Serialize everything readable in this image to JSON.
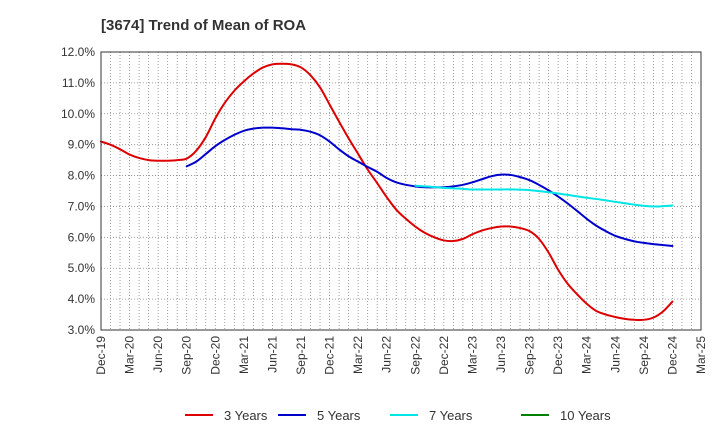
{
  "chart_data": {
    "type": "line",
    "title": "[3674]  Trend of Mean of ROA",
    "xlabel": "",
    "ylabel": "",
    "ylim": [
      3.0,
      12.0
    ],
    "y_ticks": [
      "12.0%",
      "11.0%",
      "10.0%",
      "9.0%",
      "8.0%",
      "7.0%",
      "6.0%",
      "5.0%",
      "4.0%",
      "3.0%"
    ],
    "categories": [
      "Dec-19",
      "Mar-20",
      "Jun-20",
      "Sep-20",
      "Dec-20",
      "Mar-21",
      "Jun-21",
      "Sep-21",
      "Dec-21",
      "Mar-22",
      "Jun-22",
      "Sep-22",
      "Dec-22",
      "Mar-23",
      "Jun-23",
      "Sep-23",
      "Dec-23",
      "Mar-24",
      "Jun-24",
      "Sep-24",
      "Dec-24",
      "Mar-25"
    ],
    "grid": true,
    "legend_position": "bottom",
    "series": [
      {
        "name": "3 Years",
        "color": "#dd0000",
        "x": [
          0,
          0.33,
          0.67,
          1,
          1.33,
          1.67,
          2,
          2.33,
          2.67,
          3,
          3.33,
          3.67,
          4,
          4.33,
          4.67,
          5,
          5.33,
          5.67,
          6,
          6.33,
          6.67,
          7,
          7.33,
          7.67,
          8,
          8.33,
          8.67,
          9,
          9.33,
          9.67,
          10,
          10.33,
          10.67,
          11,
          11.33,
          11.67,
          12,
          12.33,
          12.67,
          13,
          13.33,
          13.67,
          14,
          14.33,
          14.67,
          15,
          15.33,
          15.67,
          16,
          16.33,
          16.67,
          17,
          17.33,
          17.67,
          18,
          18.33,
          18.67,
          19,
          19.33,
          19.67,
          20
        ],
        "values": [
          9.1,
          9.0,
          8.85,
          8.68,
          8.57,
          8.5,
          8.48,
          8.48,
          8.5,
          8.55,
          8.8,
          9.25,
          9.85,
          10.35,
          10.75,
          11.05,
          11.3,
          11.5,
          11.6,
          11.62,
          11.6,
          11.5,
          11.25,
          10.85,
          10.3,
          9.75,
          9.2,
          8.7,
          8.2,
          7.75,
          7.3,
          6.9,
          6.6,
          6.35,
          6.15,
          6.0,
          5.9,
          5.88,
          5.95,
          6.1,
          6.22,
          6.3,
          6.35,
          6.35,
          6.3,
          6.2,
          5.95,
          5.5,
          4.95,
          4.5,
          4.15,
          3.85,
          3.62,
          3.5,
          3.42,
          3.36,
          3.33,
          3.33,
          3.4,
          3.6,
          3.92
        ]
      },
      {
        "name": "5 Years",
        "color": "#0000cc",
        "x": [
          3,
          3.33,
          3.67,
          4,
          4.33,
          4.67,
          5,
          5.33,
          5.67,
          6,
          6.33,
          6.67,
          7,
          7.33,
          7.67,
          8,
          8.33,
          8.67,
          9,
          9.33,
          9.67,
          10,
          10.33,
          10.67,
          11,
          11.33,
          11.67,
          12,
          12.33,
          12.67,
          13,
          13.33,
          13.67,
          14,
          14.33,
          14.67,
          15,
          15.33,
          15.67,
          16,
          16.33,
          16.67,
          17,
          17.33,
          17.67,
          18,
          18.33,
          18.67,
          19,
          19.33,
          19.67,
          20
        ],
        "values": [
          8.3,
          8.45,
          8.7,
          8.95,
          9.15,
          9.32,
          9.45,
          9.52,
          9.55,
          9.55,
          9.53,
          9.5,
          9.48,
          9.42,
          9.3,
          9.1,
          8.85,
          8.62,
          8.45,
          8.28,
          8.12,
          7.92,
          7.78,
          7.7,
          7.65,
          7.62,
          7.62,
          7.62,
          7.65,
          7.7,
          7.78,
          7.88,
          7.98,
          8.03,
          8.02,
          7.95,
          7.85,
          7.7,
          7.52,
          7.32,
          7.1,
          6.85,
          6.6,
          6.38,
          6.2,
          6.05,
          5.95,
          5.87,
          5.82,
          5.78,
          5.75,
          5.72
        ]
      },
      {
        "name": "7 Years",
        "color": "#00e5e5",
        "x": [
          11,
          11.5,
          12,
          12.5,
          13,
          13.5,
          14,
          14.5,
          15,
          15.5,
          16,
          16.5,
          17,
          17.5,
          18,
          18.5,
          19,
          19.5,
          20
        ],
        "values": [
          7.67,
          7.64,
          7.6,
          7.58,
          7.55,
          7.55,
          7.55,
          7.55,
          7.53,
          7.48,
          7.42,
          7.35,
          7.28,
          7.22,
          7.15,
          7.08,
          7.02,
          7.0,
          7.03
        ]
      },
      {
        "name": "10 Years",
        "color": "#008000",
        "x": [],
        "values": []
      }
    ]
  }
}
